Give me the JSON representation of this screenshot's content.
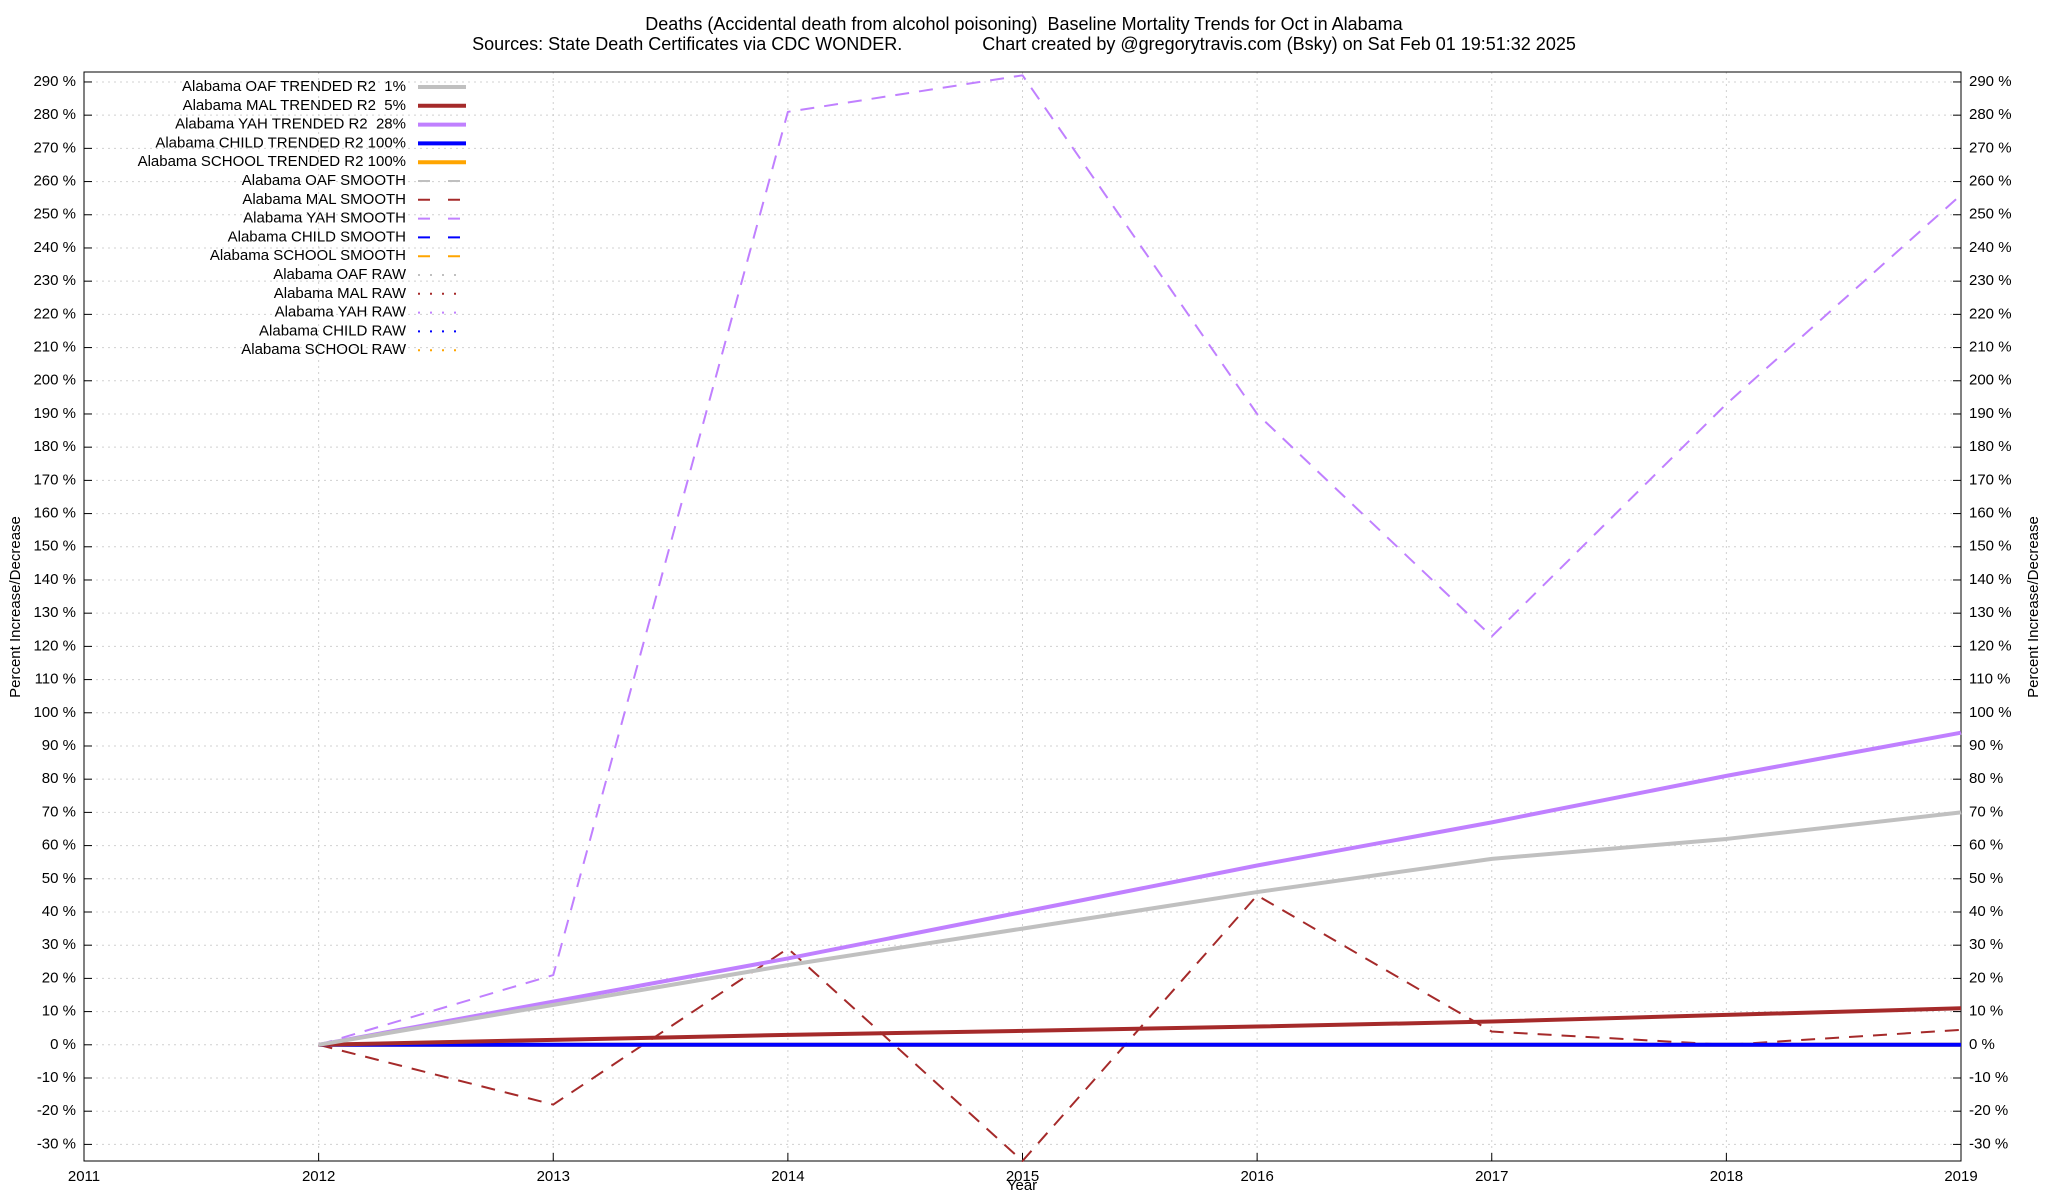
{
  "chart_data": {
    "type": "line",
    "title": "Deaths (Accidental death from alcohol poisoning)  Baseline Mortality Trends for Oct in Alabama",
    "subtitle": "Sources: State Death Certificates via CDC WONDER.                Chart created by @gregorytravis.com (Bsky) on Sat Feb 01 19:51:32 2025",
    "x_label": "Year",
    "y_label": "Percent Increase/Decrease",
    "y2_label": "Percent Increase/Decrease",
    "grid": true,
    "legend": "top-left",
    "x": [
      2012,
      2013,
      2014,
      2015,
      2016,
      2017,
      2018,
      2019
    ],
    "xlim": [
      2011,
      2019
    ],
    "xticks": [
      2011,
      2012,
      2013,
      2014,
      2015,
      2016,
      2017,
      2018,
      2019
    ],
    "ylim": [
      -35,
      293
    ],
    "yticks": [
      {
        "value": -30,
        "label": "-30 %"
      },
      {
        "value": -20,
        "label": "-20 %"
      },
      {
        "value": -10,
        "label": "-10 %"
      },
      {
        "value": 0,
        "label": "0 %"
      },
      {
        "value": 10,
        "label": "10 %"
      },
      {
        "value": 20,
        "label": "20 %"
      },
      {
        "value": 30,
        "label": "30 %"
      },
      {
        "value": 40,
        "label": "40 %"
      },
      {
        "value": 50,
        "label": "50 %"
      },
      {
        "value": 60,
        "label": "60 %"
      },
      {
        "value": 70,
        "label": "70 %"
      },
      {
        "value": 80,
        "label": "80 %"
      },
      {
        "value": 90,
        "label": "90 %"
      },
      {
        "value": 100,
        "label": "100 %"
      },
      {
        "value": 110,
        "label": "110 %"
      },
      {
        "value": 120,
        "label": "120 %"
      },
      {
        "value": 130,
        "label": "130 %"
      },
      {
        "value": 140,
        "label": "140 %"
      },
      {
        "value": 150,
        "label": "150 %"
      },
      {
        "value": 160,
        "label": "160 %"
      },
      {
        "value": 170,
        "label": "170 %"
      },
      {
        "value": 180,
        "label": "180 %"
      },
      {
        "value": 190,
        "label": "190 %"
      },
      {
        "value": 200,
        "label": "200 %"
      },
      {
        "value": 210,
        "label": "210 %"
      },
      {
        "value": 220,
        "label": "220 %"
      },
      {
        "value": 230,
        "label": "230 %"
      },
      {
        "value": 240,
        "label": "240 %"
      },
      {
        "value": 250,
        "label": "250 %"
      },
      {
        "value": 260,
        "label": "260 %"
      },
      {
        "value": 270,
        "label": "270 %"
      },
      {
        "value": 280,
        "label": "280 %"
      },
      {
        "value": 290,
        "label": "290 %"
      }
    ],
    "series": [
      {
        "name": "Alabama OAF TRENDED R2  1%",
        "color": "#c0c0c0",
        "style": "solid",
        "values": [
          0,
          12,
          24,
          35,
          46,
          56,
          62,
          70
        ]
      },
      {
        "name": "Alabama MAL TRENDED R2  5%",
        "color": "#a52a2a",
        "style": "solid",
        "values": [
          0,
          1.5,
          3,
          4.2,
          5.5,
          7,
          9,
          11
        ]
      },
      {
        "name": "Alabama YAH TRENDED R2  28%",
        "color": "#c080ff",
        "style": "solid",
        "values": [
          0,
          13,
          26,
          40,
          54,
          67,
          81,
          94
        ]
      },
      {
        "name": "Alabama CHILD TRENDED R2 100%",
        "color": "#0000ff",
        "style": "solid",
        "values": [
          0,
          0,
          0,
          0,
          0,
          0,
          0,
          0
        ]
      },
      {
        "name": "Alabama SCHOOL TRENDED R2 100%",
        "color": "#ffa500",
        "style": "solid",
        "values": [
          0,
          0,
          0,
          0,
          0,
          0,
          0,
          0
        ]
      },
      {
        "name": "Alabama OAF SMOOTH",
        "color": "#c0c0c0",
        "style": "dashed",
        "values": [
          null,
          null,
          null,
          null,
          null,
          null,
          null,
          null
        ]
      },
      {
        "name": "Alabama MAL SMOOTH",
        "color": "#a52a2a",
        "style": "dashed",
        "values": [
          0,
          -18,
          29,
          -35,
          45,
          4,
          0,
          4.5
        ]
      },
      {
        "name": "Alabama YAH SMOOTH",
        "color": "#c080ff",
        "style": "dashed",
        "values": [
          0,
          21,
          281,
          292,
          190,
          123,
          193,
          256
        ]
      },
      {
        "name": "Alabama CHILD SMOOTH",
        "color": "#0000ff",
        "style": "dashed",
        "values": [
          null,
          null,
          null,
          null,
          null,
          null,
          null,
          null
        ]
      },
      {
        "name": "Alabama SCHOOL SMOOTH",
        "color": "#ffa500",
        "style": "dashed",
        "values": [
          null,
          null,
          null,
          null,
          null,
          null,
          null,
          null
        ]
      },
      {
        "name": "Alabama OAF RAW",
        "color": "#c0c0c0",
        "style": "dotted",
        "values": [
          null,
          null,
          null,
          null,
          null,
          null,
          null,
          null
        ]
      },
      {
        "name": "Alabama MAL RAW",
        "color": "#a52a2a",
        "style": "dotted",
        "values": [
          null,
          null,
          null,
          null,
          null,
          null,
          null,
          null
        ]
      },
      {
        "name": "Alabama YAH RAW",
        "color": "#c080ff",
        "style": "dotted",
        "values": [
          null,
          null,
          null,
          null,
          null,
          null,
          null,
          null
        ]
      },
      {
        "name": "Alabama CHILD RAW",
        "color": "#0000ff",
        "style": "dotted",
        "values": [
          null,
          null,
          null,
          null,
          null,
          null,
          null,
          null
        ]
      },
      {
        "name": "Alabama SCHOOL RAW",
        "color": "#ffa500",
        "style": "dotted",
        "values": [
          null,
          null,
          null,
          null,
          null,
          null,
          null,
          null
        ]
      }
    ]
  }
}
